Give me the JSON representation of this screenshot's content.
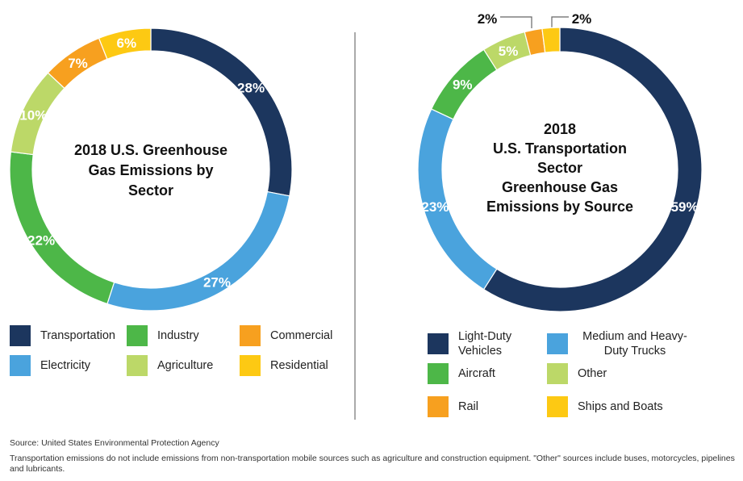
{
  "chart_data": [
    {
      "type": "pie",
      "subtype": "donut",
      "title": "2018 U.S. Greenhouse Gas Emissions by Sector",
      "categories": [
        "Transportation",
        "Electricity",
        "Industry",
        "Agriculture",
        "Commercial",
        "Residential"
      ],
      "values": [
        28,
        27,
        22,
        10,
        7,
        6
      ],
      "labels": [
        "28%",
        "27%",
        "22%",
        "10%",
        "7%",
        "6%"
      ],
      "colors": [
        "#1c365e",
        "#4aa3dd",
        "#4db748",
        "#bcd868",
        "#f7a01f",
        "#fdc913"
      ],
      "legend": [
        {
          "label": "Transportation",
          "ci": 0
        },
        {
          "label": "Industry",
          "ci": 2
        },
        {
          "label": "Commercial",
          "ci": 4
        },
        {
          "label": "Electricity",
          "ci": 1
        },
        {
          "label": "Agriculture",
          "ci": 3
        },
        {
          "label": "Residential",
          "ci": 5
        }
      ],
      "legend_position": "bottom"
    },
    {
      "type": "pie",
      "subtype": "donut",
      "title": "2018 U.S. Transportation Sector Greenhouse Gas Emissions by Source",
      "categories": [
        "Light-Duty Vehicles",
        "Medium and Heavy-Duty Trucks",
        "Aircraft",
        "Other",
        "Rail",
        "Ships and Boats"
      ],
      "values": [
        59,
        23,
        9,
        5,
        2,
        2
      ],
      "labels": [
        "59%",
        "23%",
        "9%",
        "5%",
        "2%",
        "2%"
      ],
      "colors": [
        "#1c365e",
        "#4aa3dd",
        "#4db748",
        "#bcd868",
        "#f7a01f",
        "#fdc913"
      ],
      "legend": [
        {
          "label": "Light-Duty Vehicles",
          "ci": 0
        },
        {
          "label": "Medium and Heavy-Duty Trucks",
          "ci": 1
        },
        {
          "label": "Aircraft",
          "ci": 2
        },
        {
          "label": "Other",
          "ci": 3
        },
        {
          "label": "Rail",
          "ci": 4
        },
        {
          "label": "Ships and Boats",
          "ci": 5
        }
      ],
      "legend_position": "bottom"
    }
  ],
  "left_title_lines": [
    "2018 U.S. Greenhouse",
    "Gas Emissions by",
    "Sector"
  ],
  "right_title_lines": [
    "2018",
    "U.S. Transportation",
    "Sector",
    "Greenhouse Gas",
    "Emissions by Source"
  ],
  "source": "Source: United States Environmental Protection Agency",
  "note": "Transportation emissions do not include emissions from non-transportation mobile sources such as agriculture and construction equipment. \"Other\" sources include buses, motorcycles, pipelines and lubricants."
}
